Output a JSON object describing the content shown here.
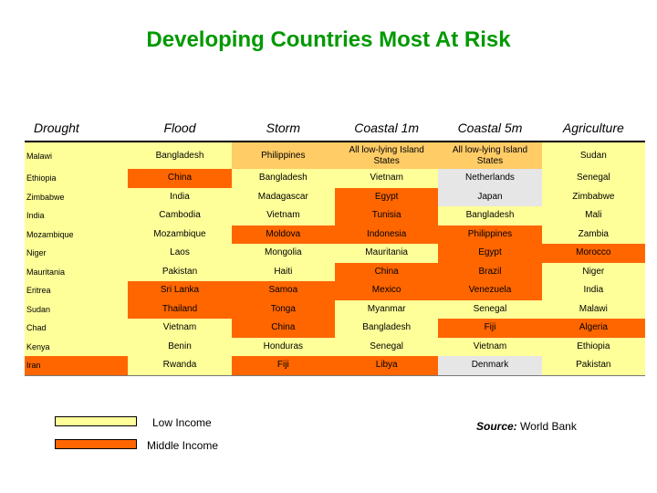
{
  "title": "Developing Countries Most At Risk",
  "columns": [
    "Drought",
    "Flood",
    "Storm",
    "Coastal 1m",
    "Coastal 5m",
    "Agriculture"
  ],
  "rows": [
    [
      [
        "Malawi",
        "L"
      ],
      [
        "Bangladesh",
        "L"
      ],
      [
        "Philippines",
        "P"
      ],
      [
        "All low-lying Island States",
        "P"
      ],
      [
        "All low-lying Island States",
        "P"
      ],
      [
        "Sudan",
        "L"
      ]
    ],
    [
      [
        "Ethiopia",
        "L"
      ],
      [
        "China",
        "M"
      ],
      [
        "Bangladesh",
        "L"
      ],
      [
        "Vietnam",
        "L"
      ],
      [
        "Netherlands",
        "G"
      ],
      [
        "Senegal",
        "L"
      ]
    ],
    [
      [
        "Zimbabwe",
        "L"
      ],
      [
        "India",
        "L"
      ],
      [
        "Madagascar",
        "L"
      ],
      [
        "Egypt",
        "M"
      ],
      [
        "Japan",
        "G"
      ],
      [
        "Zimbabwe",
        "L"
      ]
    ],
    [
      [
        "India",
        "L"
      ],
      [
        "Cambodia",
        "L"
      ],
      [
        "Vietnam",
        "L"
      ],
      [
        "Tunisia",
        "M"
      ],
      [
        "Bangladesh",
        "L"
      ],
      [
        "Mali",
        "L"
      ]
    ],
    [
      [
        "Mozambique",
        "L"
      ],
      [
        "Mozambique",
        "L"
      ],
      [
        "Moldova",
        "M"
      ],
      [
        "Indonesia",
        "M"
      ],
      [
        "Philippines",
        "M"
      ],
      [
        "Zambia",
        "L"
      ]
    ],
    [
      [
        "Niger",
        "L"
      ],
      [
        "Laos",
        "L"
      ],
      [
        "Mongolia",
        "L"
      ],
      [
        "Mauritania",
        "L"
      ],
      [
        "Egypt",
        "M"
      ],
      [
        "Morocco",
        "M"
      ]
    ],
    [
      [
        "Mauritania",
        "L"
      ],
      [
        "Pakistan",
        "L"
      ],
      [
        "Haiti",
        "L"
      ],
      [
        "China",
        "M"
      ],
      [
        "Brazil",
        "M"
      ],
      [
        "Niger",
        "L"
      ]
    ],
    [
      [
        "Eritrea",
        "L"
      ],
      [
        "Sri Lanka",
        "M"
      ],
      [
        "Samoa",
        "M"
      ],
      [
        "Mexico",
        "M"
      ],
      [
        "Venezuela",
        "M"
      ],
      [
        "India",
        "L"
      ]
    ],
    [
      [
        "Sudan",
        "L"
      ],
      [
        "Thailand",
        "M"
      ],
      [
        "Tonga",
        "M"
      ],
      [
        "Myanmar",
        "L"
      ],
      [
        "Senegal",
        "L"
      ],
      [
        "Malawi",
        "L"
      ]
    ],
    [
      [
        "Chad",
        "L"
      ],
      [
        "Vietnam",
        "L"
      ],
      [
        "China",
        "M"
      ],
      [
        "Bangladesh",
        "L"
      ],
      [
        "Fiji",
        "M"
      ],
      [
        "Algeria",
        "M"
      ]
    ],
    [
      [
        "Kenya",
        "L"
      ],
      [
        "Benin",
        "L"
      ],
      [
        "Honduras",
        "L"
      ],
      [
        "Senegal",
        "L"
      ],
      [
        "Vietnam",
        "L"
      ],
      [
        "Ethiopia",
        "L"
      ]
    ],
    [
      [
        "Iran",
        "M"
      ],
      [
        "Rwanda",
        "L"
      ],
      [
        "Fiji",
        "M"
      ],
      [
        "Libya",
        "M"
      ],
      [
        "Denmark",
        "G"
      ],
      [
        "Pakistan",
        "L"
      ]
    ]
  ],
  "legend": {
    "low_income": "Low Income",
    "middle_income": "Middle Income",
    "colors": {
      "low": "#ffff99",
      "middle": "#ff6600",
      "high": "#e6e6e6"
    }
  },
  "source": {
    "label": "Source:",
    "text": "World Bank"
  }
}
